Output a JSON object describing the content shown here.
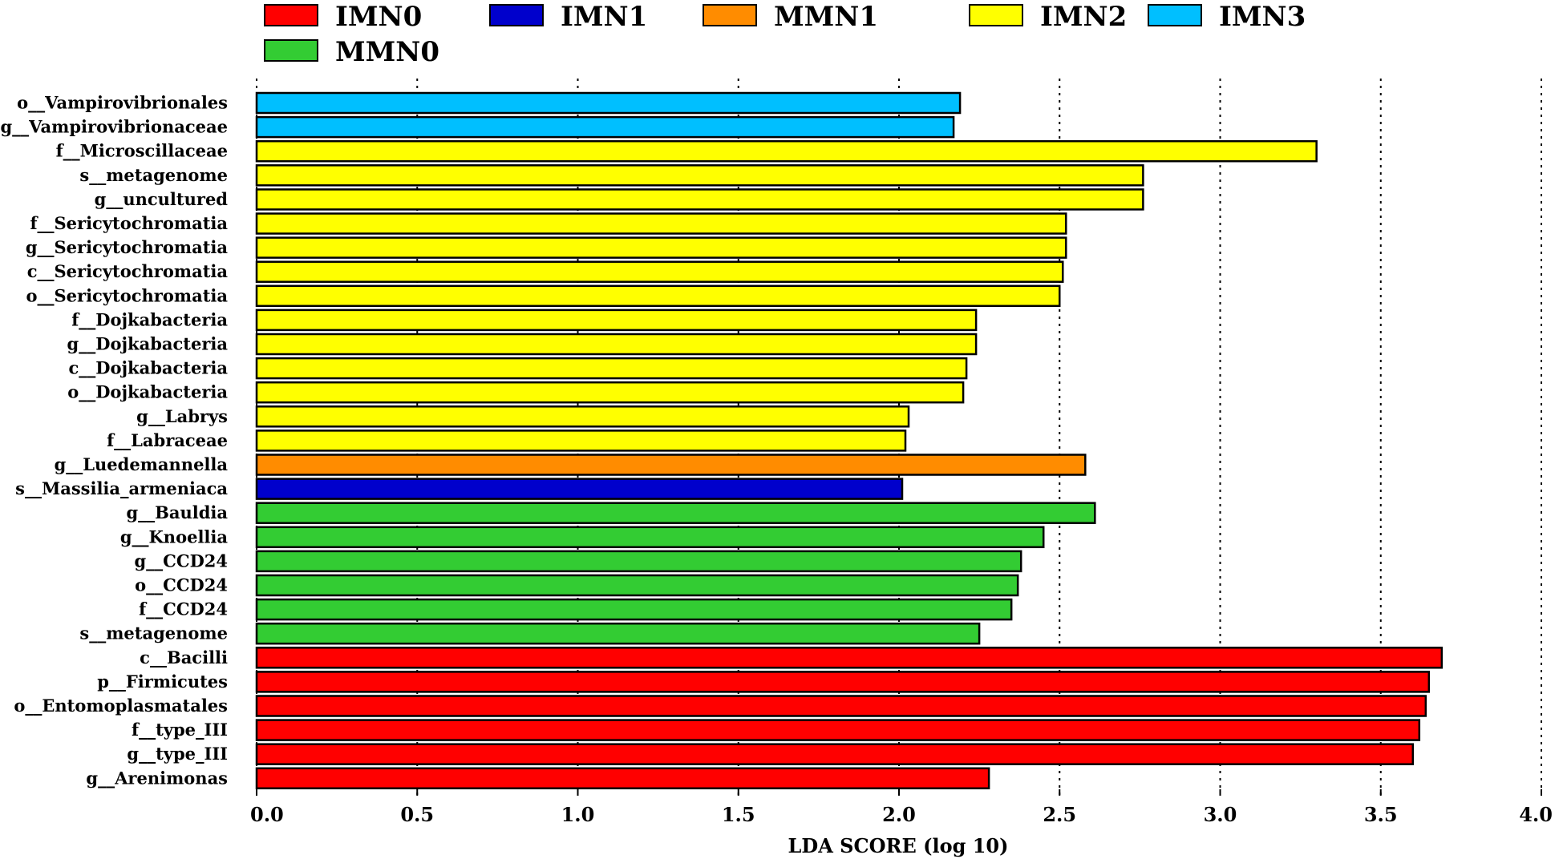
{
  "chart_data": {
    "type": "bar",
    "orientation": "horizontal",
    "title": "",
    "xlabel": "LDA SCORE (log 10)",
    "ylabel": "",
    "xlim": [
      0.0,
      4.0
    ],
    "xticks": [
      "0.0",
      "0.5",
      "1.0",
      "1.5",
      "2.0",
      "2.5",
      "3.0",
      "3.5",
      "4.0"
    ],
    "grid": "vertical dotted",
    "legend": {
      "placement": "top",
      "entries": [
        {
          "name": "IMN0",
          "color": "#ff0000"
        },
        {
          "name": "IMN1",
          "color": "#0000cc"
        },
        {
          "name": "MMN1",
          "color": "#ff8c00"
        },
        {
          "name": "IMN2",
          "color": "#ffff00"
        },
        {
          "name": "IMN3",
          "color": "#00bfff"
        },
        {
          "name": "MMN0",
          "color": "#33cc33"
        }
      ]
    },
    "bars": [
      {
        "label": "o__Vampirovibrionales",
        "value": 2.19,
        "group": "IMN3"
      },
      {
        "label": "g__Vampirovibrionaceae",
        "value": 2.17,
        "group": "IMN3"
      },
      {
        "label": "f__Microscillaceae",
        "value": 3.3,
        "group": "IMN2"
      },
      {
        "label": "s__metagenome",
        "value": 2.76,
        "group": "IMN2"
      },
      {
        "label": "g__uncultured",
        "value": 2.76,
        "group": "IMN2"
      },
      {
        "label": "f__Sericytochromatia",
        "value": 2.52,
        "group": "IMN2"
      },
      {
        "label": "g__Sericytochromatia",
        "value": 2.52,
        "group": "IMN2"
      },
      {
        "label": "c__Sericytochromatia",
        "value": 2.51,
        "group": "IMN2"
      },
      {
        "label": "o__Sericytochromatia",
        "value": 2.5,
        "group": "IMN2"
      },
      {
        "label": "f__Dojkabacteria",
        "value": 2.24,
        "group": "IMN2"
      },
      {
        "label": "g__Dojkabacteria",
        "value": 2.24,
        "group": "IMN2"
      },
      {
        "label": "c__Dojkabacteria",
        "value": 2.21,
        "group": "IMN2"
      },
      {
        "label": "o__Dojkabacteria",
        "value": 2.2,
        "group": "IMN2"
      },
      {
        "label": "g__Labrys",
        "value": 2.03,
        "group": "IMN2"
      },
      {
        "label": "f__Labraceae",
        "value": 2.02,
        "group": "IMN2"
      },
      {
        "label": "g__Luedemannella",
        "value": 2.58,
        "group": "MMN1"
      },
      {
        "label": "s__Massilia_armeniaca",
        "value": 2.01,
        "group": "IMN1"
      },
      {
        "label": "g__Bauldia",
        "value": 2.61,
        "group": "MMN0"
      },
      {
        "label": "g__Knoellia",
        "value": 2.45,
        "group": "MMN0"
      },
      {
        "label": "g__CCD24",
        "value": 2.38,
        "group": "MMN0"
      },
      {
        "label": "o__CCD24",
        "value": 2.37,
        "group": "MMN0"
      },
      {
        "label": "f__CCD24",
        "value": 2.35,
        "group": "MMN0"
      },
      {
        "label": "s__metagenome",
        "value": 2.25,
        "group": "MMN0"
      },
      {
        "label": "c__Bacilli",
        "value": 3.69,
        "group": "IMN0"
      },
      {
        "label": "p__Firmicutes",
        "value": 3.65,
        "group": "IMN0"
      },
      {
        "label": "o__Entomoplasmatales",
        "value": 3.64,
        "group": "IMN0"
      },
      {
        "label": "f__type_III",
        "value": 3.62,
        "group": "IMN0"
      },
      {
        "label": "g__type_III",
        "value": 3.6,
        "group": "IMN0"
      },
      {
        "label": "g__Arenimonas",
        "value": 2.28,
        "group": "IMN0"
      }
    ]
  }
}
